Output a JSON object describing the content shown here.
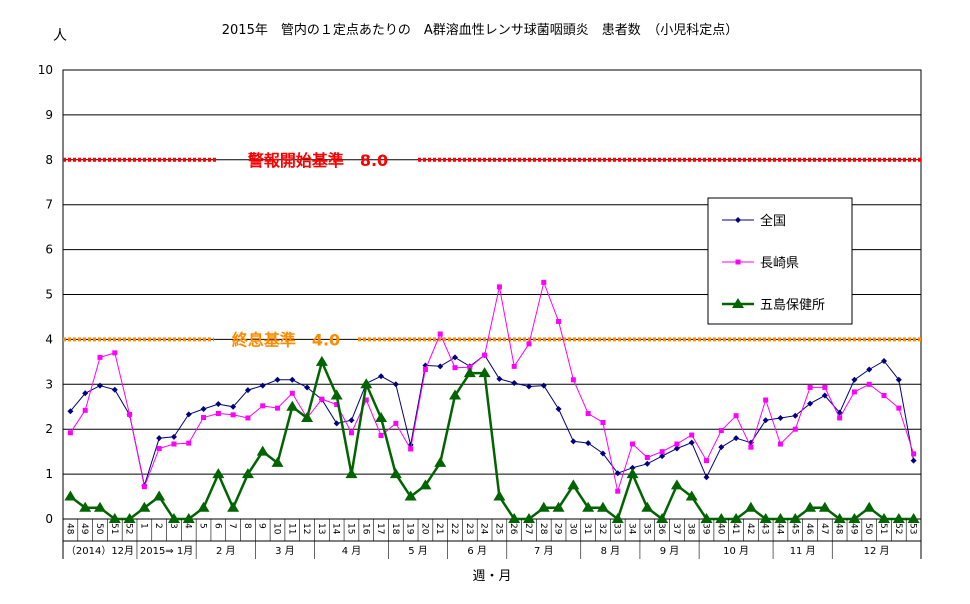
{
  "chart_data": {
    "type": "line",
    "title": "2015年　管内の１定点あたりの　A群溶血性レンサ球菌咽頭炎　患者数　（小児科定点）",
    "ylabel": "人",
    "xlabel": "週・月",
    "ylim": [
      0,
      10
    ],
    "yticks": [
      "0",
      "1",
      "2",
      "3",
      "4",
      "5",
      "6",
      "7",
      "8",
      "9",
      "10"
    ],
    "grid": "horizontal",
    "legend_position": "right",
    "x": [
      "48",
      "49",
      "50",
      "51",
      "52",
      "1",
      "2",
      "3",
      "4",
      "5",
      "6",
      "7",
      "8",
      "9",
      "10",
      "11",
      "12",
      "13",
      "14",
      "15",
      "16",
      "17",
      "18",
      "19",
      "20",
      "21",
      "22",
      "23",
      "24",
      "25",
      "26",
      "27",
      "28",
      "29",
      "30",
      "31",
      "32",
      "33",
      "34",
      "35",
      "36",
      "37",
      "38",
      "39",
      "40",
      "41",
      "42",
      "43",
      "44",
      "45",
      "46",
      "47",
      "48",
      "49",
      "50",
      "51",
      "52",
      "53"
    ],
    "month_labels": [
      {
        "label": "（2014）12月",
        "from": 0,
        "to": 4
      },
      {
        "label": "2015⇒ 1月",
        "from": 5,
        "to": 8
      },
      {
        "label": "2 月",
        "from": 9,
        "to": 12
      },
      {
        "label": "3 月",
        "from": 13,
        "to": 16
      },
      {
        "label": "4 月",
        "from": 17,
        "to": 21
      },
      {
        "label": "5 月",
        "from": 22,
        "to": 25
      },
      {
        "label": "6 月",
        "from": 26,
        "to": 29
      },
      {
        "label": "7 月",
        "from": 30,
        "to": 34
      },
      {
        "label": "8 月",
        "from": 35,
        "to": 38
      },
      {
        "label": "9 月",
        "from": 39,
        "to": 42
      },
      {
        "label": "10 月",
        "from": 43,
        "to": 47
      },
      {
        "label": "11 月",
        "from": 48,
        "to": 51
      },
      {
        "label": "12 月",
        "from": 52,
        "to": 57
      }
    ],
    "series": [
      {
        "name": "全国",
        "color": "#000080",
        "marker": "diamond",
        "values": [
          2.4,
          2.8,
          2.97,
          2.88,
          2.32,
          0.75,
          1.8,
          1.83,
          2.33,
          2.45,
          2.56,
          2.5,
          2.87,
          2.97,
          3.1,
          3.1,
          2.93,
          2.66,
          2.13,
          2.2,
          3.02,
          3.18,
          3.0,
          1.65,
          3.42,
          3.4,
          3.6,
          3.4,
          3.65,
          3.12,
          3.03,
          2.95,
          2.97,
          2.45,
          1.73,
          1.69,
          1.46,
          1.02,
          1.14,
          1.23,
          1.4,
          1.57,
          1.7,
          0.93,
          1.6,
          1.8,
          1.7,
          2.2,
          2.25,
          2.3,
          2.57,
          2.75,
          2.37,
          3.1,
          3.33,
          3.52,
          3.1,
          1.3
        ]
      },
      {
        "name": "長崎県",
        "color": "#ff00ff",
        "marker": "square",
        "values": [
          1.92,
          2.42,
          3.6,
          3.7,
          2.33,
          0.72,
          1.57,
          1.67,
          1.69,
          2.26,
          2.35,
          2.32,
          2.25,
          2.52,
          2.47,
          2.8,
          2.25,
          2.67,
          2.55,
          1.92,
          2.65,
          1.86,
          2.13,
          1.56,
          3.33,
          4.12,
          3.37,
          3.38,
          3.65,
          5.17,
          3.4,
          3.9,
          5.27,
          4.4,
          3.1,
          2.35,
          2.15,
          0.62,
          1.67,
          1.37,
          1.5,
          1.67,
          1.87,
          1.3,
          1.97,
          2.3,
          1.6,
          2.65,
          1.67,
          2.0,
          2.93,
          2.93,
          2.25,
          2.83,
          3.0,
          2.75,
          2.47,
          1.45
        ]
      },
      {
        "name": "五島保健所",
        "color": "#006400",
        "marker": "triangle",
        "values": [
          0.5,
          0.25,
          0.25,
          0.0,
          0.0,
          0.25,
          0.5,
          0.0,
          0.0,
          0.25,
          1.0,
          0.25,
          1.0,
          1.5,
          1.25,
          2.5,
          2.25,
          3.5,
          2.75,
          1.0,
          3.0,
          2.25,
          1.0,
          0.5,
          0.75,
          1.25,
          2.75,
          3.25,
          3.25,
          0.5,
          0.0,
          0.0,
          0.25,
          0.25,
          0.75,
          0.25,
          0.25,
          0.0,
          1.0,
          0.25,
          0.0,
          0.75,
          0.5,
          0.0,
          0.0,
          0.0,
          0.25,
          0.0,
          0.0,
          0.0,
          0.25,
          0.25,
          0.0,
          0.0,
          0.25,
          0.0,
          0.0,
          0.0
        ]
      }
    ],
    "reference_lines": [
      {
        "label": "警報開始基準　8.0",
        "value": 8.0,
        "color": "#ff0000"
      },
      {
        "label": "終息基準　4.0",
        "value": 4.0,
        "color": "#ff8c00"
      }
    ]
  }
}
